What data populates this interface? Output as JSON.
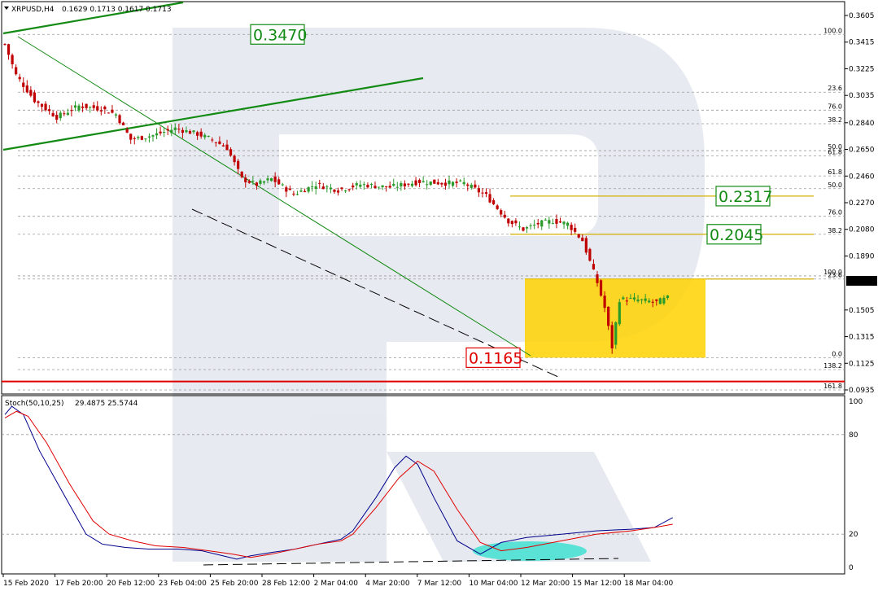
{
  "chart_data": [
    {
      "type": "candlestick",
      "title": "XRPUSD,H4  0.1629 0.1713 0.1617 0.1713",
      "symbol_text": "XRPUSD,H4",
      "ohlc_text": "0.1629 0.1713 0.1617 0.1713",
      "ylim": [
        0.0935,
        0.3605
      ],
      "y_ticks": [
        "0.3605",
        "0.3415",
        "0.3225",
        "0.3035",
        "0.2840",
        "0.2650",
        "0.2460",
        "0.2270",
        "0.2080",
        "0.1890",
        "0.1713",
        "0.1505",
        "0.1315",
        "0.1125",
        "0.0935"
      ],
      "y_tick_values": [
        0.3605,
        0.3415,
        0.3225,
        0.3035,
        0.284,
        0.265,
        0.246,
        0.227,
        0.208,
        0.189,
        0.1713,
        0.1505,
        0.1315,
        0.1125,
        0.0935
      ],
      "current_price": 0.1713,
      "current_price_label": "0.1713",
      "x_ticks": [
        "15 Feb 2020",
        "17 Feb 20:00",
        "20 Feb 12:00",
        "23 Feb 04:00",
        "25 Feb 20:00",
        "28 Feb 12:00",
        "2 Mar 04:00",
        "4 Mar 20:00",
        "7 Mar 12:00",
        "10 Mar 04:00",
        "12 Mar 20:00",
        "15 Mar 12:00",
        "18 Mar 04:00"
      ],
      "candle_count": 200,
      "price_path": [
        [
          0,
          0.34
        ],
        [
          3,
          0.318
        ],
        [
          8,
          0.3
        ],
        [
          14,
          0.288
        ],
        [
          20,
          0.296
        ],
        [
          26,
          0.294
        ],
        [
          30,
          0.29
        ],
        [
          34,
          0.272
        ],
        [
          40,
          0.275
        ],
        [
          46,
          0.28
        ],
        [
          52,
          0.276
        ],
        [
          56,
          0.272
        ],
        [
          60,
          0.266
        ],
        [
          64,
          0.244
        ],
        [
          68,
          0.24
        ],
        [
          72,
          0.244
        ],
        [
          78,
          0.233
        ],
        [
          84,
          0.24
        ],
        [
          90,
          0.236
        ],
        [
          96,
          0.24
        ],
        [
          104,
          0.238
        ],
        [
          112,
          0.242
        ],
        [
          118,
          0.241
        ],
        [
          124,
          0.241
        ],
        [
          130,
          0.232
        ],
        [
          136,
          0.214
        ],
        [
          140,
          0.208
        ],
        [
          144,
          0.212
        ],
        [
          148,
          0.214
        ],
        [
          152,
          0.212
        ],
        [
          156,
          0.2
        ],
        [
          160,
          0.17
        ],
        [
          162,
          0.152
        ],
        [
          164,
          0.124
        ],
        [
          166,
          0.158
        ],
        [
          170,
          0.158
        ],
        [
          176,
          0.156
        ],
        [
          182,
          0.162
        ],
        [
          188,
          0.148
        ],
        [
          194,
          0.152
        ],
        [
          200,
          0.152
        ],
        [
          206,
          0.15
        ],
        [
          210,
          0.166
        ],
        [
          213,
          0.1713
        ]
      ],
      "fibonacci_levels": [
        {
          "label": "100.0",
          "value": 0.347
        },
        {
          "label": "23.6",
          "value": 0.3058
        },
        {
          "label": "76.0",
          "value": 0.293
        },
        {
          "label": "38.2",
          "value": 0.2833
        },
        {
          "label": "50.0",
          "value": 0.2641
        },
        {
          "label": "61.8",
          "value": 0.2603
        },
        {
          "label": "61.8",
          "value": 0.2461
        },
        {
          "label": "50.0",
          "value": 0.237
        },
        {
          "label": "76.0",
          "value": 0.2173
        },
        {
          "label": "38.2",
          "value": 0.2045
        },
        {
          "label": "100.0",
          "value": 0.1748
        },
        {
          "label": "23.6",
          "value": 0.1726
        },
        {
          "label": "0.0",
          "value": 0.1165
        },
        {
          "label": "138.2",
          "value": 0.108
        },
        {
          "label": "161.8",
          "value": 0.0935
        }
      ],
      "annotations": {
        "high": "0.3470",
        "low": "0.1165",
        "target_1": "0.2317",
        "target_2": "0.2045"
      },
      "annotation_values": {
        "high": 0.347,
        "low": 0.1165,
        "target_1": 0.2317,
        "target_2": 0.2045,
        "red_support": 0.0995
      },
      "colors": {
        "bull": "#2a9a2a",
        "bear": "#c00000",
        "trend": "#138a13",
        "support": "#e00000",
        "box": "#ffd200",
        "target_line": "#d4b000",
        "grid": "#9a9a9a",
        "callout_green": "#138a13",
        "callout_red": "#e00000",
        "price_tag": "#000000"
      }
    },
    {
      "type": "line",
      "title": "Stoch(50,10,25) 29.4875 25.5744",
      "indicator_text": "Stoch(50,10,25)",
      "values_text": "29.4875 25.5744",
      "ylim": [
        0,
        100
      ],
      "y_ticks": [
        "100",
        "80",
        "20",
        "0"
      ],
      "y_tick_values": [
        100,
        80,
        20,
        0
      ],
      "series": [
        {
          "color": "#00008b",
          "points": [
            [
              0,
              92
            ],
            [
              3,
              97
            ],
            [
              8,
              92
            ],
            [
              15,
              70
            ],
            [
              25,
              45
            ],
            [
              35,
              20
            ],
            [
              42,
              14
            ],
            [
              52,
              12
            ],
            [
              62,
              11
            ],
            [
              75,
              11
            ],
            [
              85,
              10
            ],
            [
              94,
              7
            ],
            [
              100,
              5
            ],
            [
              106,
              7
            ],
            [
              115,
              9
            ],
            [
              125,
              11
            ],
            [
              135,
              14
            ],
            [
              145,
              17
            ],
            [
              150,
              22
            ],
            [
              160,
              42
            ],
            [
              168,
              60
            ],
            [
              173,
              67
            ],
            [
              178,
              62
            ],
            [
              185,
              42
            ],
            [
              195,
              16
            ],
            [
              205,
              8
            ],
            [
              214,
              15
            ],
            [
              225,
              18
            ],
            [
              240,
              20
            ],
            [
              255,
              22
            ],
            [
              270,
              23
            ],
            [
              280,
              24
            ],
            [
              288,
              30
            ]
          ]
        },
        {
          "color": "#e00000",
          "points": [
            [
              0,
              90
            ],
            [
              5,
              94
            ],
            [
              10,
              91
            ],
            [
              18,
              75
            ],
            [
              28,
              50
            ],
            [
              38,
              28
            ],
            [
              45,
              20
            ],
            [
              55,
              16
            ],
            [
              65,
              13
            ],
            [
              77,
              12
            ],
            [
              88,
              10
            ],
            [
              98,
              8
            ],
            [
              106,
              6
            ],
            [
              115,
              8
            ],
            [
              125,
              11
            ],
            [
              135,
              14
            ],
            [
              145,
              16
            ],
            [
              150,
              20
            ],
            [
              160,
              36
            ],
            [
              170,
              54
            ],
            [
              178,
              64
            ],
            [
              185,
              58
            ],
            [
              195,
              35
            ],
            [
              205,
              15
            ],
            [
              214,
              10
            ],
            [
              225,
              12
            ],
            [
              240,
              16
            ],
            [
              255,
              20
            ],
            [
              270,
              22
            ],
            [
              280,
              24
            ],
            [
              288,
              26
            ]
          ]
        }
      ],
      "colors": {
        "main": "#00008b",
        "signal": "#e00000",
        "divergence": "#40e0d0"
      }
    }
  ]
}
